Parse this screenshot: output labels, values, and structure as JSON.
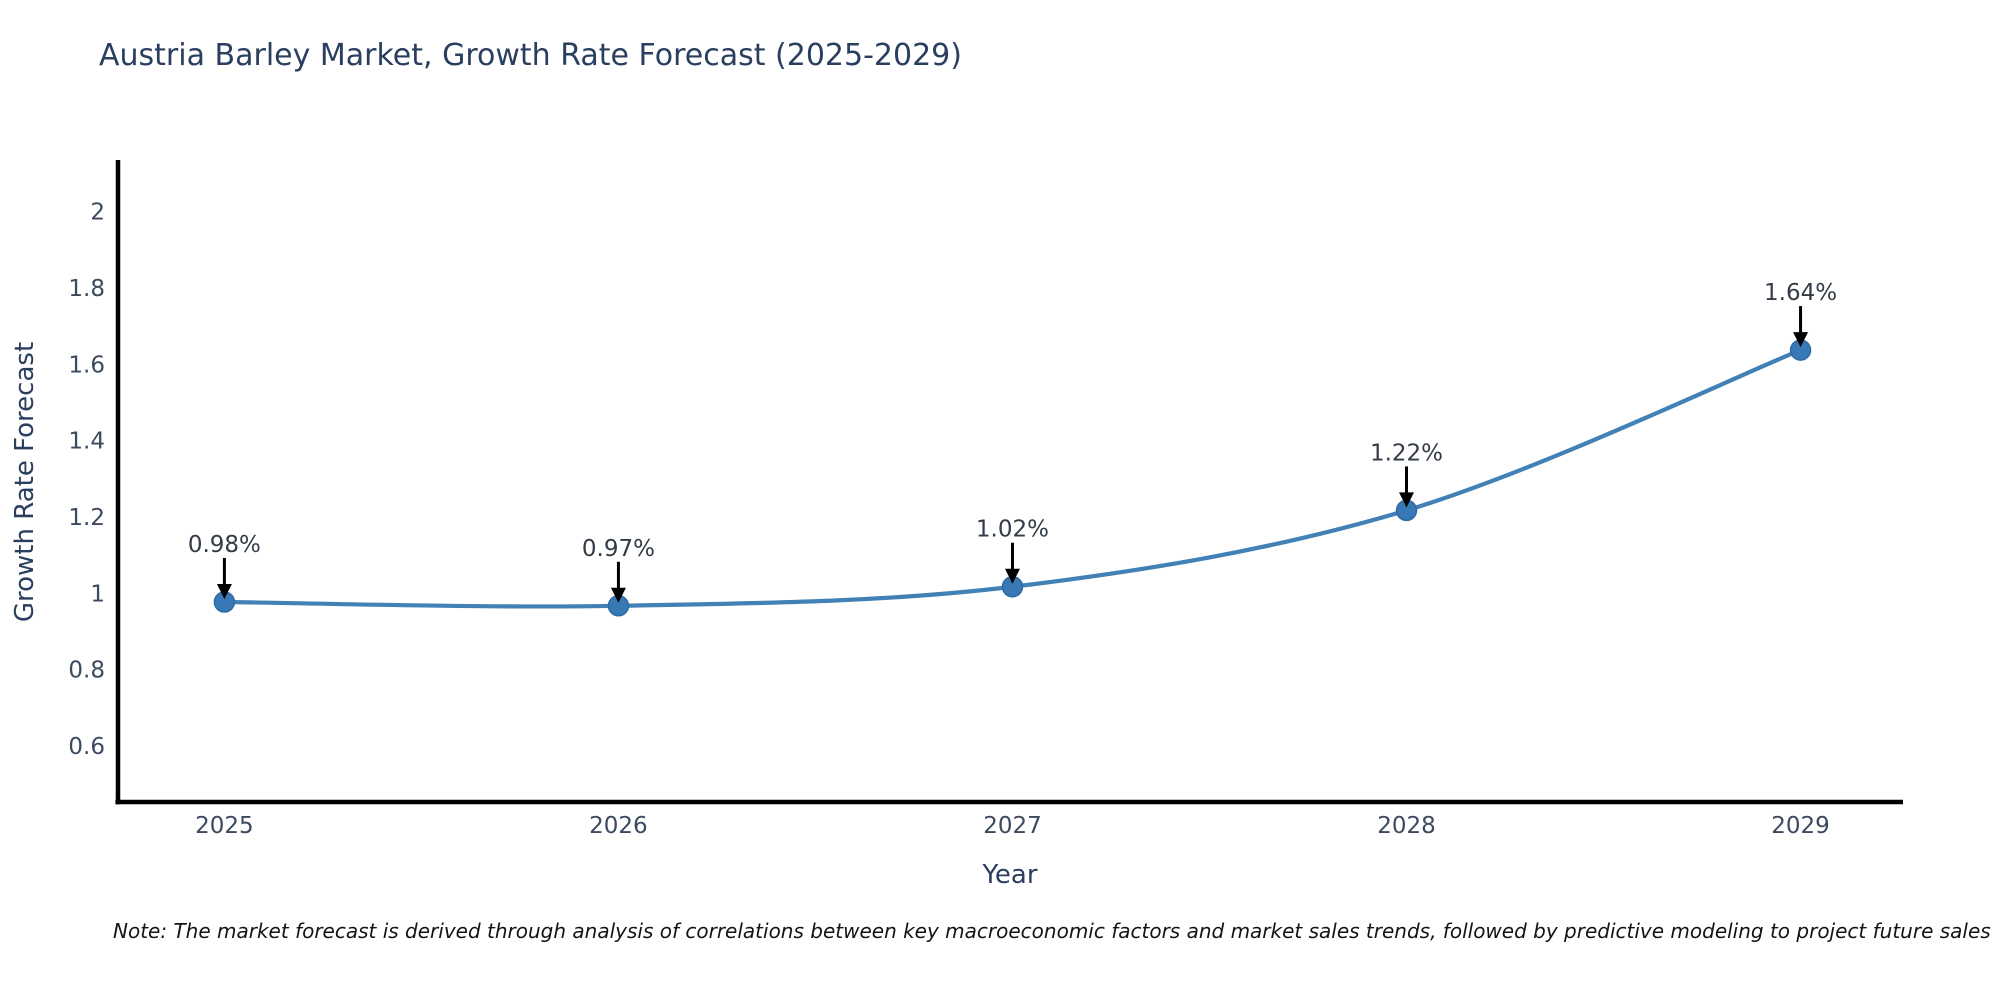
{
  "title": "Austria Barley Market, Growth Rate Forecast (2025-2029)",
  "note": "Note: The market forecast is derived through analysis of correlations between key macroeconomic factors and market sales trends, followed by predictive modeling to project future sales",
  "chart_data": {
    "type": "line",
    "line_shape": "spline",
    "title": "Austria Barley Market, Growth Rate Forecast (2025-2029)",
    "xlabel": "Year",
    "ylabel": "Growth Rate Forecast",
    "x": [
      2025,
      2026,
      2027,
      2028,
      2029
    ],
    "values": [
      0.98,
      0.97,
      1.02,
      1.22,
      1.64
    ],
    "point_labels": [
      "0.98%",
      "0.97%",
      "1.02%",
      "1.22%",
      "1.64%"
    ],
    "xticks": [
      "2025",
      "2026",
      "2027",
      "2028",
      "2029"
    ],
    "yticks": [
      0.6,
      0.8,
      1,
      1.2,
      1.4,
      1.6,
      1.8,
      2
    ],
    "xlim": [
      2024.73,
      2029.26
    ],
    "ylim": [
      0.456,
      2.138
    ],
    "grid": false,
    "legend": "none",
    "line_color": "#4181b5",
    "marker_color": "#3878b4",
    "marker_edge_color": "#2f6ba3",
    "arrow_color": "#000000",
    "axis_color": "#000000",
    "text_color": "#2a3f5f"
  }
}
